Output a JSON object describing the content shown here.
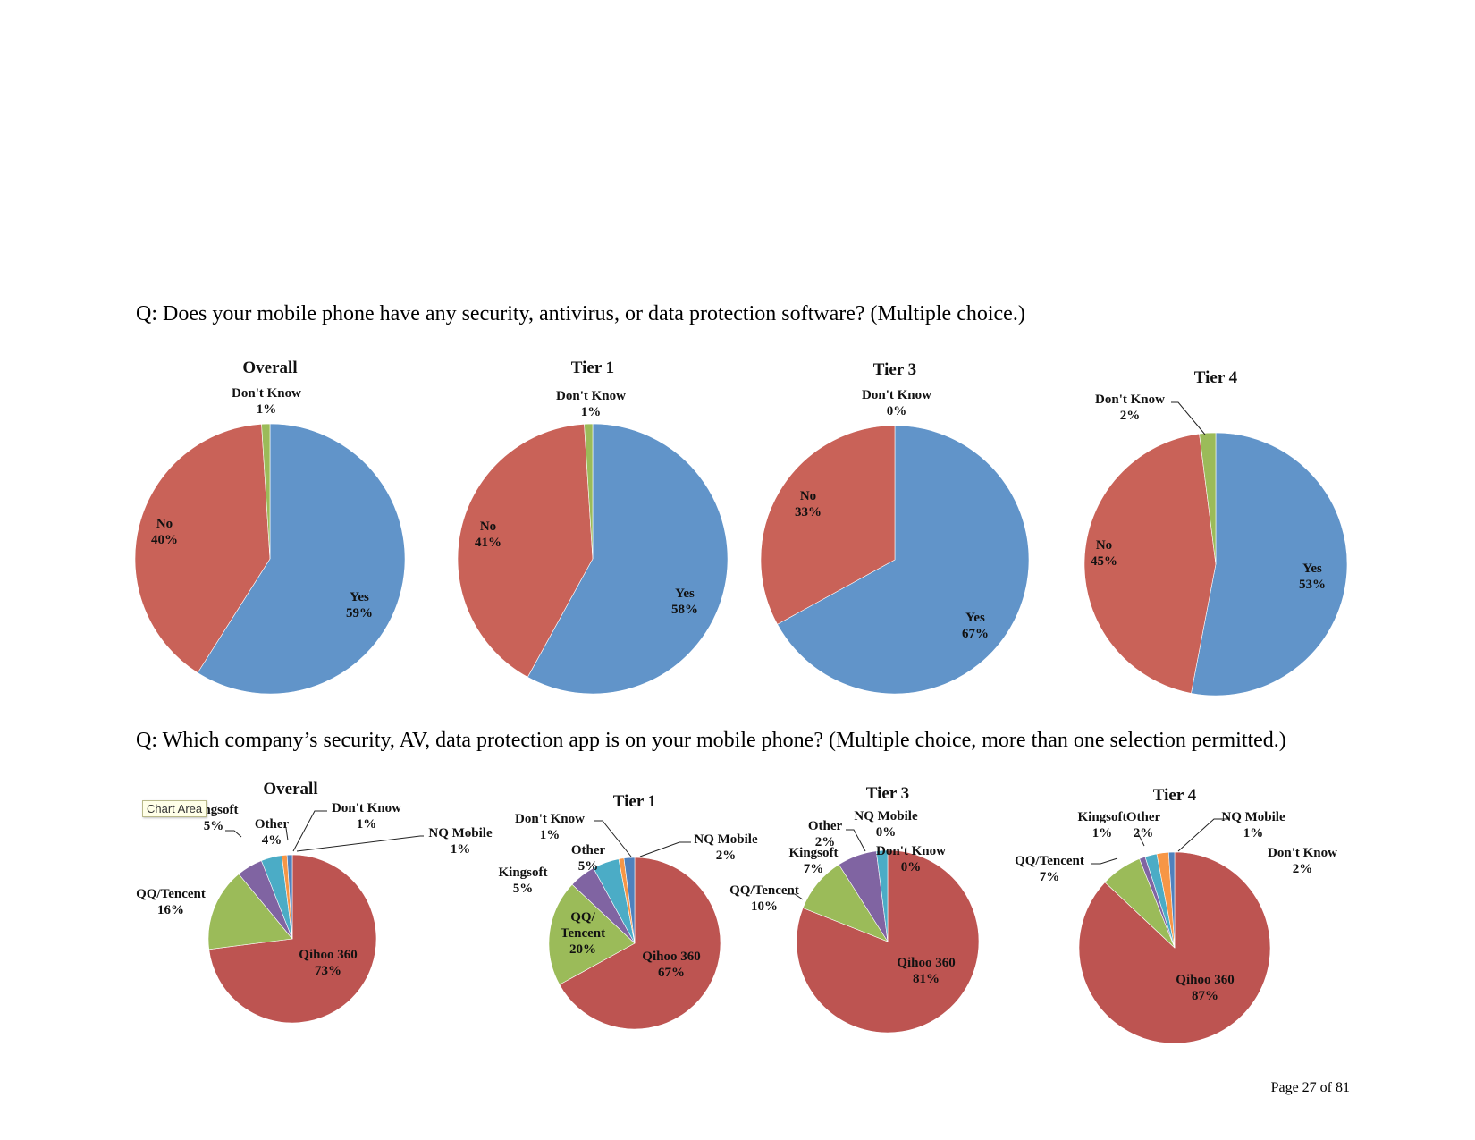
{
  "questions": {
    "q1": "Q: Does your mobile phone have any security, antivirus, or data protection software?  (Multiple choice.)",
    "q2": "Q: Which company’s security, AV, data protection app is on your mobile phone?  (Multiple choice, more than one selection permitted.)"
  },
  "tooltip": "Chart Area",
  "page_number": "Page 27 of 81",
  "colors": {
    "blue": "#6194c9",
    "red": "#c0504d",
    "red2": "#bd5451",
    "green": "#9bbb59",
    "purple": "#8064a2",
    "teal": "#4bacc6",
    "orange": "#f79646",
    "navy": "#4f81bd"
  },
  "chart_data": [
    {
      "type": "pie",
      "group": "q1",
      "title": "Overall",
      "slices": [
        {
          "label": "Yes",
          "value": 59,
          "display": "59%",
          "color": "#6194c9"
        },
        {
          "label": "No",
          "value": 40,
          "display": "40%",
          "color": "#c96258"
        },
        {
          "label": "Don't Know",
          "value": 1,
          "display": "1%",
          "color": "#9bbb59"
        }
      ]
    },
    {
      "type": "pie",
      "group": "q1",
      "title": "Tier 1",
      "slices": [
        {
          "label": "Yes",
          "value": 58,
          "display": "58%",
          "color": "#6194c9"
        },
        {
          "label": "No",
          "value": 41,
          "display": "41%",
          "color": "#c96258"
        },
        {
          "label": "Don't Know",
          "value": 1,
          "display": "1%",
          "color": "#9bbb59"
        }
      ]
    },
    {
      "type": "pie",
      "group": "q1",
      "title": "Tier 3",
      "slices": [
        {
          "label": "Yes",
          "value": 67,
          "display": "67%",
          "color": "#6194c9"
        },
        {
          "label": "No",
          "value": 33,
          "display": "33%",
          "color": "#c96258"
        },
        {
          "label": "Don't Know",
          "value": 0,
          "display": "0%",
          "color": "#9bbb59"
        }
      ]
    },
    {
      "type": "pie",
      "group": "q1",
      "title": "Tier 4",
      "slices": [
        {
          "label": "Yes",
          "value": 53,
          "display": "53%",
          "color": "#6194c9"
        },
        {
          "label": "No",
          "value": 45,
          "display": "45%",
          "color": "#c96258"
        },
        {
          "label": "Don't Know",
          "value": 2,
          "display": "2%",
          "color": "#9bbb59"
        }
      ]
    },
    {
      "type": "pie",
      "group": "q2",
      "title": "Overall",
      "slices": [
        {
          "label": "Qihoo 360",
          "value": 73,
          "display": "73%",
          "color": "#bd5451"
        },
        {
          "label": "QQ/Tencent",
          "value": 16,
          "display": "16%",
          "color": "#9bbb59"
        },
        {
          "label": "Kingsoft",
          "value": 5,
          "display": "5%",
          "color": "#8064a2"
        },
        {
          "label": "Other",
          "value": 4,
          "display": "4%",
          "color": "#4bacc6"
        },
        {
          "label": "Don't Know",
          "value": 1,
          "display": "1%",
          "color": "#f79646"
        },
        {
          "label": "NQ Mobile",
          "value": 1,
          "display": "1%",
          "color": "#4f81bd"
        }
      ]
    },
    {
      "type": "pie",
      "group": "q2",
      "title": "Tier 1",
      "slices": [
        {
          "label": "Qihoo 360",
          "value": 67,
          "display": "67%",
          "color": "#bd5451"
        },
        {
          "label": "QQ/ Tencent",
          "value": 20,
          "display": "20%",
          "color": "#9bbb59"
        },
        {
          "label": "Kingsoft",
          "value": 5,
          "display": "5%",
          "color": "#8064a2"
        },
        {
          "label": "Other",
          "value": 5,
          "display": "5%",
          "color": "#4bacc6"
        },
        {
          "label": "Don't Know",
          "value": 1,
          "display": "1%",
          "color": "#f79646"
        },
        {
          "label": "NQ Mobile",
          "value": 2,
          "display": "2%",
          "color": "#4f81bd"
        }
      ]
    },
    {
      "type": "pie",
      "group": "q2",
      "title": "Tier 3",
      "slices": [
        {
          "label": "Qihoo 360",
          "value": 81,
          "display": "81%",
          "color": "#bd5451"
        },
        {
          "label": "QQ/Tencent",
          "value": 10,
          "display": "10%",
          "color": "#9bbb59"
        },
        {
          "label": "Kingsoft",
          "value": 7,
          "display": "7%",
          "color": "#8064a2"
        },
        {
          "label": "Other",
          "value": 2,
          "display": "2%",
          "color": "#4bacc6"
        },
        {
          "label": "Don't Know",
          "value": 0,
          "display": "0%",
          "color": "#f79646"
        },
        {
          "label": "NQ Mobile",
          "value": 0,
          "display": "0%",
          "color": "#4f81bd"
        }
      ]
    },
    {
      "type": "pie",
      "group": "q2",
      "title": "Tier 4",
      "slices": [
        {
          "label": "Qihoo 360",
          "value": 87,
          "display": "87%",
          "color": "#bd5451"
        },
        {
          "label": "QQ/Tencent",
          "value": 7,
          "display": "7%",
          "color": "#9bbb59"
        },
        {
          "label": "Kingsoft",
          "value": 1,
          "display": "1%",
          "color": "#8064a2"
        },
        {
          "label": "Other",
          "value": 2,
          "display": "2%",
          "color": "#4bacc6"
        },
        {
          "label": "Don't Know",
          "value": 2,
          "display": "2%",
          "color": "#f79646"
        },
        {
          "label": "NQ Mobile",
          "value": 1,
          "display": "1%",
          "color": "#4f81bd"
        }
      ]
    }
  ]
}
